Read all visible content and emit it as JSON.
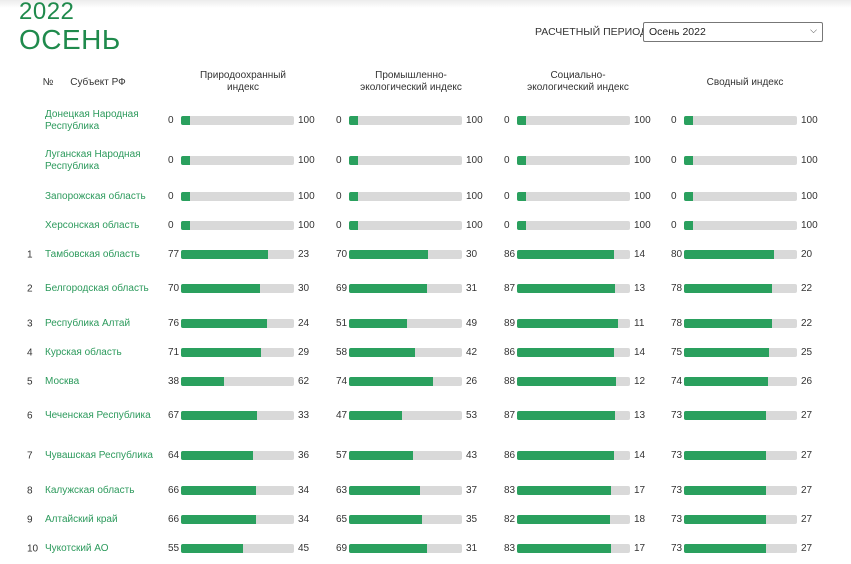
{
  "header": {
    "year": "2022",
    "season": "ОСЕНЬ",
    "period_label": "РАСЧЕТНЫЙ ПЕРИОД",
    "period_value": "Осень 2022"
  },
  "columns": {
    "num": "№",
    "subject": "Субъект РФ",
    "indices": [
      {
        "l1": "Природоохранный",
        "l2": "индекс"
      },
      {
        "l1": "Промышленно-",
        "l2": "экологический индекс"
      },
      {
        "l1": "Социально-",
        "l2": "экологический индекс"
      },
      {
        "l1": "Сводный индекс",
        "l2": ""
      }
    ]
  },
  "colors": {
    "accent": "#1f8a4c",
    "bar_fill": "#2aa05e",
    "bar_track": "#d9d9d9"
  },
  "rows": [
    {
      "rank": "",
      "name": "Донецкая Народная Республика",
      "values": [
        [
          0,
          100
        ],
        [
          0,
          100
        ],
        [
          0,
          100
        ],
        [
          0,
          100
        ]
      ]
    },
    {
      "rank": "",
      "name": "Луганская Народная Республика",
      "values": [
        [
          0,
          100
        ],
        [
          0,
          100
        ],
        [
          0,
          100
        ],
        [
          0,
          100
        ]
      ]
    },
    {
      "rank": "",
      "name": "Запорожская область",
      "values": [
        [
          0,
          100
        ],
        [
          0,
          100
        ],
        [
          0,
          100
        ],
        [
          0,
          100
        ]
      ]
    },
    {
      "rank": "",
      "name": "Херсонская область",
      "values": [
        [
          0,
          100
        ],
        [
          0,
          100
        ],
        [
          0,
          100
        ],
        [
          0,
          100
        ]
      ]
    },
    {
      "rank": "1",
      "name": "Тамбовская область",
      "values": [
        [
          77,
          23
        ],
        [
          70,
          30
        ],
        [
          86,
          14
        ],
        [
          80,
          20
        ]
      ]
    },
    {
      "rank": "2",
      "name": "Белгородская область",
      "values": [
        [
          70,
          30
        ],
        [
          69,
          31
        ],
        [
          87,
          13
        ],
        [
          78,
          22
        ]
      ]
    },
    {
      "rank": "3",
      "name": "Республика Алтай",
      "values": [
        [
          76,
          24
        ],
        [
          51,
          49
        ],
        [
          89,
          11
        ],
        [
          78,
          22
        ]
      ]
    },
    {
      "rank": "4",
      "name": "Курская область",
      "values": [
        [
          71,
          29
        ],
        [
          58,
          42
        ],
        [
          86,
          14
        ],
        [
          75,
          25
        ]
      ]
    },
    {
      "rank": "5",
      "name": "Москва",
      "values": [
        [
          38,
          62
        ],
        [
          74,
          26
        ],
        [
          88,
          12
        ],
        [
          74,
          26
        ]
      ]
    },
    {
      "rank": "6",
      "name": "Чеченская Республика",
      "values": [
        [
          67,
          33
        ],
        [
          47,
          53
        ],
        [
          87,
          13
        ],
        [
          73,
          27
        ]
      ]
    },
    {
      "rank": "7",
      "name": "Чувашская Республика",
      "values": [
        [
          64,
          36
        ],
        [
          57,
          43
        ],
        [
          86,
          14
        ],
        [
          73,
          27
        ]
      ]
    },
    {
      "rank": "8",
      "name": "Калужская область",
      "values": [
        [
          66,
          34
        ],
        [
          63,
          37
        ],
        [
          83,
          17
        ],
        [
          73,
          27
        ]
      ]
    },
    {
      "rank": "9",
      "name": "Алтайский край",
      "values": [
        [
          66,
          34
        ],
        [
          65,
          35
        ],
        [
          82,
          18
        ],
        [
          73,
          27
        ]
      ]
    },
    {
      "rank": "10",
      "name": "Чукотский АО",
      "values": [
        [
          55,
          45
        ],
        [
          69,
          31
        ],
        [
          83,
          17
        ],
        [
          73,
          27
        ]
      ]
    }
  ]
}
